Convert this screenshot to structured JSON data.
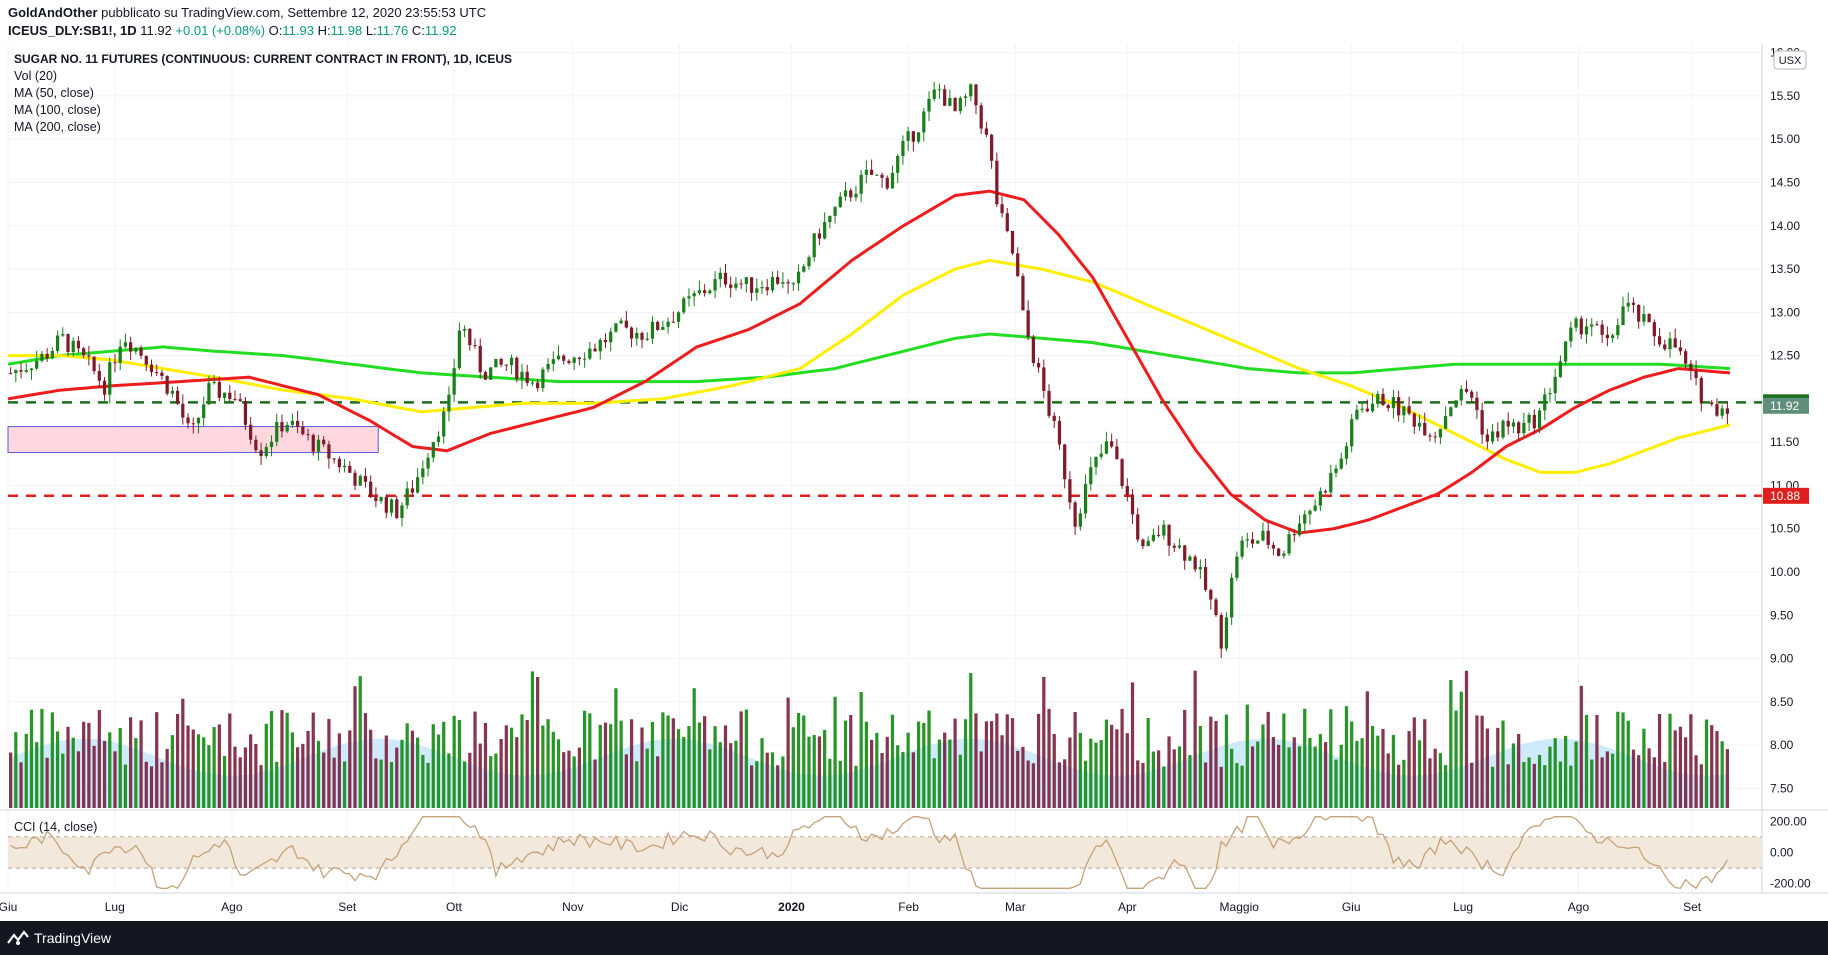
{
  "header": {
    "author": "GoldAndOther",
    "published_text": "pubblicato su TradingView.com, Settembre 12, 2020 23:55:53 UTC",
    "symbol": "ICEUS_DLY:SB1!, 1D",
    "last": "11.92",
    "change": "+0.01 (+0.08%)",
    "open_label": "O:",
    "open": "11.93",
    "high_label": "H:",
    "high": "11.98",
    "low_label": "L:",
    "low": "11.76",
    "close_label": "C:",
    "close": "11.92"
  },
  "legend": {
    "title": "SUGAR NO. 11 FUTURES (CONTINUOUS: CURRENT CONTRACT IN FRONT), 1D, ICEUS",
    "vol": "Vol (20)",
    "ma50": "MA (50, close)",
    "ma100": "MA (100, close)",
    "ma200": "MA (200, close)",
    "cci": "CCI (14, close)"
  },
  "currency_badge": "USX",
  "footer": {
    "brand": "TradingView"
  },
  "colors": {
    "up": "#1a7f1a",
    "down": "#7f1a2a",
    "ma50": "#ee1c1c",
    "ma100": "#ffee00",
    "ma200": "#22dd22",
    "vol_ma": "#bfe3fa",
    "cci": "#c6a27a",
    "cci_band": "#f2e9dc"
  },
  "chart_data": {
    "type": "candlestick",
    "y_axis": {
      "min": 7.25,
      "max": 16.1,
      "ticks": [
        "16.00",
        "15.50",
        "15.00",
        "14.50",
        "14.00",
        "13.50",
        "13.00",
        "12.50",
        "12.00",
        "11.50",
        "11.00",
        "10.50",
        "10.00",
        "9.50",
        "9.00",
        "8.50",
        "8.00",
        "7.50"
      ]
    },
    "x_axis_labels": [
      {
        "label": "Giu",
        "t": 0.0
      },
      {
        "label": "Lug",
        "t": 0.062
      },
      {
        "label": "Ago",
        "t": 0.13
      },
      {
        "label": "Set",
        "t": 0.197
      },
      {
        "label": "Ott",
        "t": 0.259
      },
      {
        "label": "Nov",
        "t": 0.328
      },
      {
        "label": "Dic",
        "t": 0.39
      },
      {
        "label": "2020",
        "t": 0.455
      },
      {
        "label": "Feb",
        "t": 0.523
      },
      {
        "label": "Mar",
        "t": 0.585
      },
      {
        "label": "Apr",
        "t": 0.65
      },
      {
        "label": "Maggio",
        "t": 0.715
      },
      {
        "label": "Giu",
        "t": 0.78
      },
      {
        "label": "Lug",
        "t": 0.845
      },
      {
        "label": "Ago",
        "t": 0.912
      },
      {
        "label": "Set",
        "t": 0.978
      }
    ],
    "price_path": [
      [
        0,
        12.3
      ],
      [
        0.02,
        12.5
      ],
      [
        0.03,
        12.7
      ],
      [
        0.045,
        12.4
      ],
      [
        0.055,
        12.15
      ],
      [
        0.065,
        12.75
      ],
      [
        0.08,
        12.45
      ],
      [
        0.095,
        12.05
      ],
      [
        0.105,
        11.55
      ],
      [
        0.115,
        12.1
      ],
      [
        0.13,
        12.05
      ],
      [
        0.145,
        11.4
      ],
      [
        0.16,
        11.75
      ],
      [
        0.175,
        11.5
      ],
      [
        0.195,
        11.2
      ],
      [
        0.21,
        10.9
      ],
      [
        0.225,
        10.7
      ],
      [
        0.235,
        11.0
      ],
      [
        0.245,
        11.5
      ],
      [
        0.255,
        11.9
      ],
      [
        0.262,
        12.9
      ],
      [
        0.275,
        12.3
      ],
      [
        0.29,
        12.4
      ],
      [
        0.305,
        12.2
      ],
      [
        0.32,
        12.45
      ],
      [
        0.34,
        12.6
      ],
      [
        0.355,
        12.8
      ],
      [
        0.37,
        12.75
      ],
      [
        0.385,
        12.95
      ],
      [
        0.4,
        13.2
      ],
      [
        0.415,
        13.4
      ],
      [
        0.43,
        13.3
      ],
      [
        0.45,
        13.4
      ],
      [
        0.455,
        13.2
      ],
      [
        0.47,
        13.9
      ],
      [
        0.485,
        14.3
      ],
      [
        0.5,
        14.6
      ],
      [
        0.51,
        14.5
      ],
      [
        0.52,
        14.9
      ],
      [
        0.53,
        15.2
      ],
      [
        0.54,
        15.6
      ],
      [
        0.55,
        15.3
      ],
      [
        0.56,
        15.55
      ],
      [
        0.57,
        14.9
      ],
      [
        0.575,
        14.2
      ],
      [
        0.585,
        13.6
      ],
      [
        0.59,
        12.9
      ],
      [
        0.6,
        12.2
      ],
      [
        0.61,
        11.5
      ],
      [
        0.62,
        10.6
      ],
      [
        0.63,
        11.2
      ],
      [
        0.64,
        11.5
      ],
      [
        0.65,
        10.9
      ],
      [
        0.66,
        10.2
      ],
      [
        0.67,
        10.5
      ],
      [
        0.68,
        10.3
      ],
      [
        0.69,
        10.1
      ],
      [
        0.7,
        9.6
      ],
      [
        0.705,
        9.2
      ],
      [
        0.715,
        10.3
      ],
      [
        0.73,
        10.4
      ],
      [
        0.74,
        10.2
      ],
      [
        0.75,
        10.6
      ],
      [
        0.76,
        10.8
      ],
      [
        0.775,
        11.3
      ],
      [
        0.785,
        11.9
      ],
      [
        0.8,
        12.0
      ],
      [
        0.815,
        11.8
      ],
      [
        0.83,
        11.6
      ],
      [
        0.84,
        12.0
      ],
      [
        0.85,
        12.1
      ],
      [
        0.86,
        11.5
      ],
      [
        0.87,
        11.7
      ],
      [
        0.88,
        11.65
      ],
      [
        0.89,
        11.8
      ],
      [
        0.9,
        12.3
      ],
      [
        0.91,
        12.8
      ],
      [
        0.92,
        12.9
      ],
      [
        0.93,
        12.6
      ],
      [
        0.94,
        13.1
      ],
      [
        0.95,
        12.9
      ],
      [
        0.96,
        12.7
      ],
      [
        0.97,
        12.6
      ],
      [
        0.98,
        12.2
      ],
      [
        0.99,
        11.9
      ],
      [
        1.0,
        11.92
      ]
    ],
    "ma50": [
      [
        0,
        12.0
      ],
      [
        0.03,
        12.1
      ],
      [
        0.06,
        12.15
      ],
      [
        0.1,
        12.2
      ],
      [
        0.14,
        12.25
      ],
      [
        0.18,
        12.05
      ],
      [
        0.21,
        11.75
      ],
      [
        0.235,
        11.45
      ],
      [
        0.255,
        11.4
      ],
      [
        0.28,
        11.6
      ],
      [
        0.31,
        11.75
      ],
      [
        0.34,
        11.9
      ],
      [
        0.37,
        12.2
      ],
      [
        0.4,
        12.6
      ],
      [
        0.43,
        12.8
      ],
      [
        0.46,
        13.1
      ],
      [
        0.49,
        13.6
      ],
      [
        0.52,
        14.0
      ],
      [
        0.55,
        14.35
      ],
      [
        0.57,
        14.4
      ],
      [
        0.59,
        14.3
      ],
      [
        0.61,
        13.9
      ],
      [
        0.63,
        13.4
      ],
      [
        0.65,
        12.7
      ],
      [
        0.67,
        12.0
      ],
      [
        0.69,
        11.4
      ],
      [
        0.71,
        10.9
      ],
      [
        0.73,
        10.6
      ],
      [
        0.75,
        10.45
      ],
      [
        0.77,
        10.5
      ],
      [
        0.79,
        10.6
      ],
      [
        0.81,
        10.75
      ],
      [
        0.83,
        10.9
      ],
      [
        0.85,
        11.15
      ],
      [
        0.87,
        11.45
      ],
      [
        0.89,
        11.65
      ],
      [
        0.91,
        11.9
      ],
      [
        0.93,
        12.1
      ],
      [
        0.95,
        12.25
      ],
      [
        0.97,
        12.35
      ],
      [
        1.0,
        12.3
      ]
    ],
    "ma100": [
      [
        0,
        12.5
      ],
      [
        0.03,
        12.5
      ],
      [
        0.06,
        12.45
      ],
      [
        0.09,
        12.35
      ],
      [
        0.12,
        12.25
      ],
      [
        0.16,
        12.1
      ],
      [
        0.2,
        12.0
      ],
      [
        0.24,
        11.85
      ],
      [
        0.27,
        11.9
      ],
      [
        0.3,
        11.95
      ],
      [
        0.34,
        11.95
      ],
      [
        0.38,
        12.0
      ],
      [
        0.42,
        12.15
      ],
      [
        0.46,
        12.35
      ],
      [
        0.49,
        12.75
      ],
      [
        0.52,
        13.2
      ],
      [
        0.55,
        13.5
      ],
      [
        0.57,
        13.6
      ],
      [
        0.6,
        13.5
      ],
      [
        0.63,
        13.35
      ],
      [
        0.66,
        13.1
      ],
      [
        0.69,
        12.85
      ],
      [
        0.72,
        12.6
      ],
      [
        0.75,
        12.35
      ],
      [
        0.78,
        12.15
      ],
      [
        0.81,
        11.9
      ],
      [
        0.84,
        11.6
      ],
      [
        0.87,
        11.3
      ],
      [
        0.89,
        11.15
      ],
      [
        0.91,
        11.15
      ],
      [
        0.93,
        11.25
      ],
      [
        0.95,
        11.4
      ],
      [
        0.97,
        11.55
      ],
      [
        1.0,
        11.7
      ]
    ],
    "ma200": [
      [
        0,
        12.4
      ],
      [
        0.03,
        12.5
      ],
      [
        0.06,
        12.55
      ],
      [
        0.09,
        12.6
      ],
      [
        0.12,
        12.55
      ],
      [
        0.16,
        12.5
      ],
      [
        0.2,
        12.4
      ],
      [
        0.24,
        12.3
      ],
      [
        0.28,
        12.25
      ],
      [
        0.32,
        12.2
      ],
      [
        0.36,
        12.2
      ],
      [
        0.4,
        12.2
      ],
      [
        0.44,
        12.25
      ],
      [
        0.48,
        12.35
      ],
      [
        0.52,
        12.55
      ],
      [
        0.55,
        12.7
      ],
      [
        0.57,
        12.75
      ],
      [
        0.6,
        12.7
      ],
      [
        0.63,
        12.65
      ],
      [
        0.66,
        12.55
      ],
      [
        0.69,
        12.45
      ],
      [
        0.72,
        12.35
      ],
      [
        0.75,
        12.3
      ],
      [
        0.78,
        12.3
      ],
      [
        0.81,
        12.35
      ],
      [
        0.84,
        12.4
      ],
      [
        0.87,
        12.4
      ],
      [
        0.9,
        12.4
      ],
      [
        0.93,
        12.4
      ],
      [
        0.96,
        12.4
      ],
      [
        1.0,
        12.35
      ]
    ],
    "horizontal_levels": [
      {
        "value": 11.96,
        "label": "11.96",
        "color": "#1b6e1b"
      },
      {
        "value": 10.88,
        "label": "10.88",
        "color": "#e01e1e"
      }
    ],
    "last_price_label": {
      "value": 11.92,
      "label": "11.92",
      "color": "#5f8f7a"
    },
    "zone_box": {
      "y_top": 11.68,
      "y_bottom": 11.38,
      "t_end": 0.215
    },
    "cci": {
      "ticks": [
        "200.00",
        "0.00",
        "-200.00"
      ],
      "band": [
        100,
        -100
      ]
    }
  }
}
